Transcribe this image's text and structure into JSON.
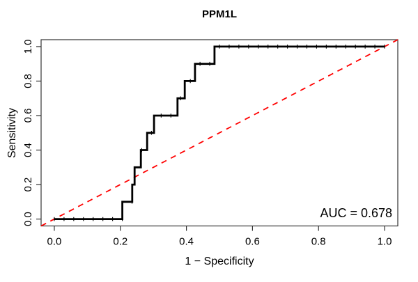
{
  "figure": {
    "title": "PPM1L",
    "auc_text": "AUC = 0.678"
  },
  "chart_data": {
    "type": "line",
    "subtype": "roc-step-curve",
    "title": "PPM1L",
    "xlabel": "1 − Specificity",
    "ylabel": "Sensitivity",
    "xlim": [
      0,
      1
    ],
    "ylim": [
      0,
      1
    ],
    "x_ticks": [
      0.0,
      0.2,
      0.4,
      0.6,
      0.8,
      1.0
    ],
    "y_ticks": [
      0.0,
      0.2,
      0.4,
      0.6,
      0.8,
      1.0
    ],
    "x_tick_labels": [
      "0.0",
      "0.2",
      "0.4",
      "0.6",
      "0.8",
      "1.0"
    ],
    "y_tick_labels": [
      "0.0",
      "0.2",
      "0.4",
      "0.6",
      "0.8",
      "1.0"
    ],
    "grid": false,
    "legend": "none",
    "auc": 0.678,
    "annotation": {
      "text": "AUC = 0.678",
      "position": "bottom-right"
    },
    "series": [
      {
        "name": "ROC curve",
        "color": "#000000",
        "line_width": 2.8,
        "style": "solid-step",
        "points_fpr_tpr": [
          [
            0.0,
            0.0
          ],
          [
            0.206,
            0.0
          ],
          [
            0.206,
            0.1
          ],
          [
            0.236,
            0.1
          ],
          [
            0.236,
            0.2
          ],
          [
            0.243,
            0.2
          ],
          [
            0.243,
            0.3
          ],
          [
            0.262,
            0.3
          ],
          [
            0.262,
            0.4
          ],
          [
            0.281,
            0.4
          ],
          [
            0.281,
            0.5
          ],
          [
            0.302,
            0.5
          ],
          [
            0.302,
            0.6
          ],
          [
            0.373,
            0.6
          ],
          [
            0.373,
            0.7
          ],
          [
            0.395,
            0.7
          ],
          [
            0.395,
            0.8
          ],
          [
            0.426,
            0.8
          ],
          [
            0.426,
            0.9
          ],
          [
            0.485,
            0.9
          ],
          [
            0.485,
            1.0
          ],
          [
            1.0,
            1.0
          ]
        ],
        "sample_marks_count": 35
      },
      {
        "name": "chance diagonal",
        "color": "#FF0000",
        "line_width": 1.8,
        "style": "dashed",
        "from": [
          0,
          0
        ],
        "to": [
          1,
          1
        ]
      }
    ]
  },
  "colors": {
    "curve": "#000000",
    "diagonal": "#FF0000",
    "axis": "#333333",
    "background": "#FFFFFF"
  }
}
